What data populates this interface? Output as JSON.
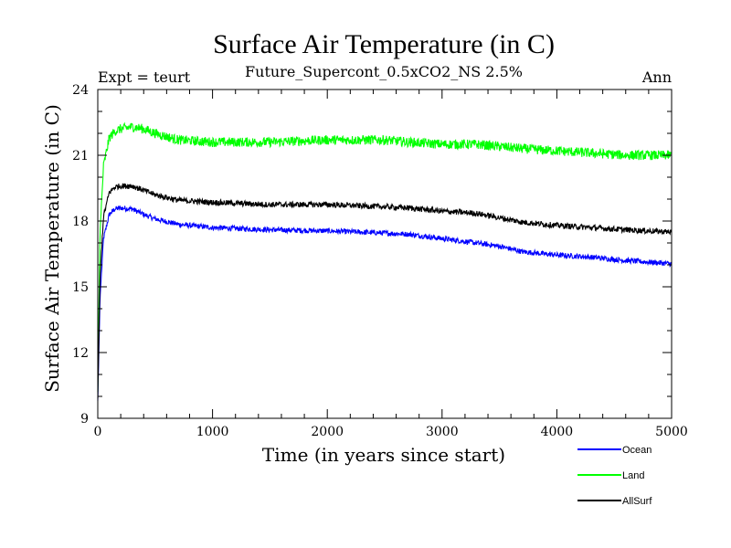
{
  "chart_data": {
    "type": "line",
    "title": "Surface Air Temperature (in C)",
    "subtitle": "Future_Supercont_0.5xCO2_NS 2.5%",
    "left_label": "Expt = teurt",
    "right_label": "Ann",
    "xlabel": "Time (in years since start)",
    "ylabel": "Surface Air Temperature (in C)",
    "xlim": [
      0,
      5000
    ],
    "ylim": [
      9,
      24
    ],
    "x_ticks": [
      0,
      1000,
      2000,
      3000,
      4000,
      5000
    ],
    "y_ticks": [
      9,
      12,
      15,
      18,
      21,
      24
    ],
    "grid": false,
    "legend_position": "bottom-right, below plot",
    "series": [
      {
        "name": "Ocean",
        "color": "#0000ff",
        "noise": 0.12,
        "x": [
          0,
          20,
          50,
          100,
          150,
          200,
          300,
          400,
          500,
          700,
          1000,
          1500,
          2000,
          2500,
          2700,
          3000,
          3300,
          3500,
          3700,
          4000,
          4300,
          4600,
          5000
        ],
        "y": [
          9.8,
          14.5,
          17.2,
          18.3,
          18.55,
          18.6,
          18.55,
          18.3,
          18.1,
          17.85,
          17.7,
          17.6,
          17.55,
          17.45,
          17.4,
          17.2,
          17.0,
          16.85,
          16.6,
          16.45,
          16.35,
          16.2,
          16.05
        ]
      },
      {
        "name": "Land",
        "color": "#00ff00",
        "noise": 0.22,
        "x": [
          0,
          20,
          50,
          100,
          150,
          200,
          300,
          400,
          500,
          700,
          1000,
          1500,
          2000,
          2500,
          2700,
          3000,
          3300,
          3500,
          3700,
          4000,
          4300,
          4600,
          5000
        ],
        "y": [
          10.2,
          17.5,
          20.5,
          21.8,
          22.1,
          22.2,
          22.3,
          22.2,
          22.0,
          21.7,
          21.6,
          21.6,
          21.7,
          21.7,
          21.6,
          21.5,
          21.5,
          21.4,
          21.3,
          21.2,
          21.1,
          21.0,
          21.0
        ]
      },
      {
        "name": "AllSurf",
        "color": "#000000",
        "noise": 0.13,
        "x": [
          0,
          20,
          50,
          100,
          150,
          200,
          300,
          400,
          500,
          700,
          1000,
          1500,
          2000,
          2500,
          2700,
          3000,
          3300,
          3500,
          3700,
          4000,
          4300,
          4600,
          5000
        ],
        "y": [
          9.9,
          15.5,
          18.2,
          19.3,
          19.55,
          19.6,
          19.6,
          19.4,
          19.2,
          18.95,
          18.85,
          18.75,
          18.75,
          18.65,
          18.6,
          18.45,
          18.35,
          18.15,
          17.95,
          17.8,
          17.7,
          17.6,
          17.5
        ]
      }
    ]
  }
}
